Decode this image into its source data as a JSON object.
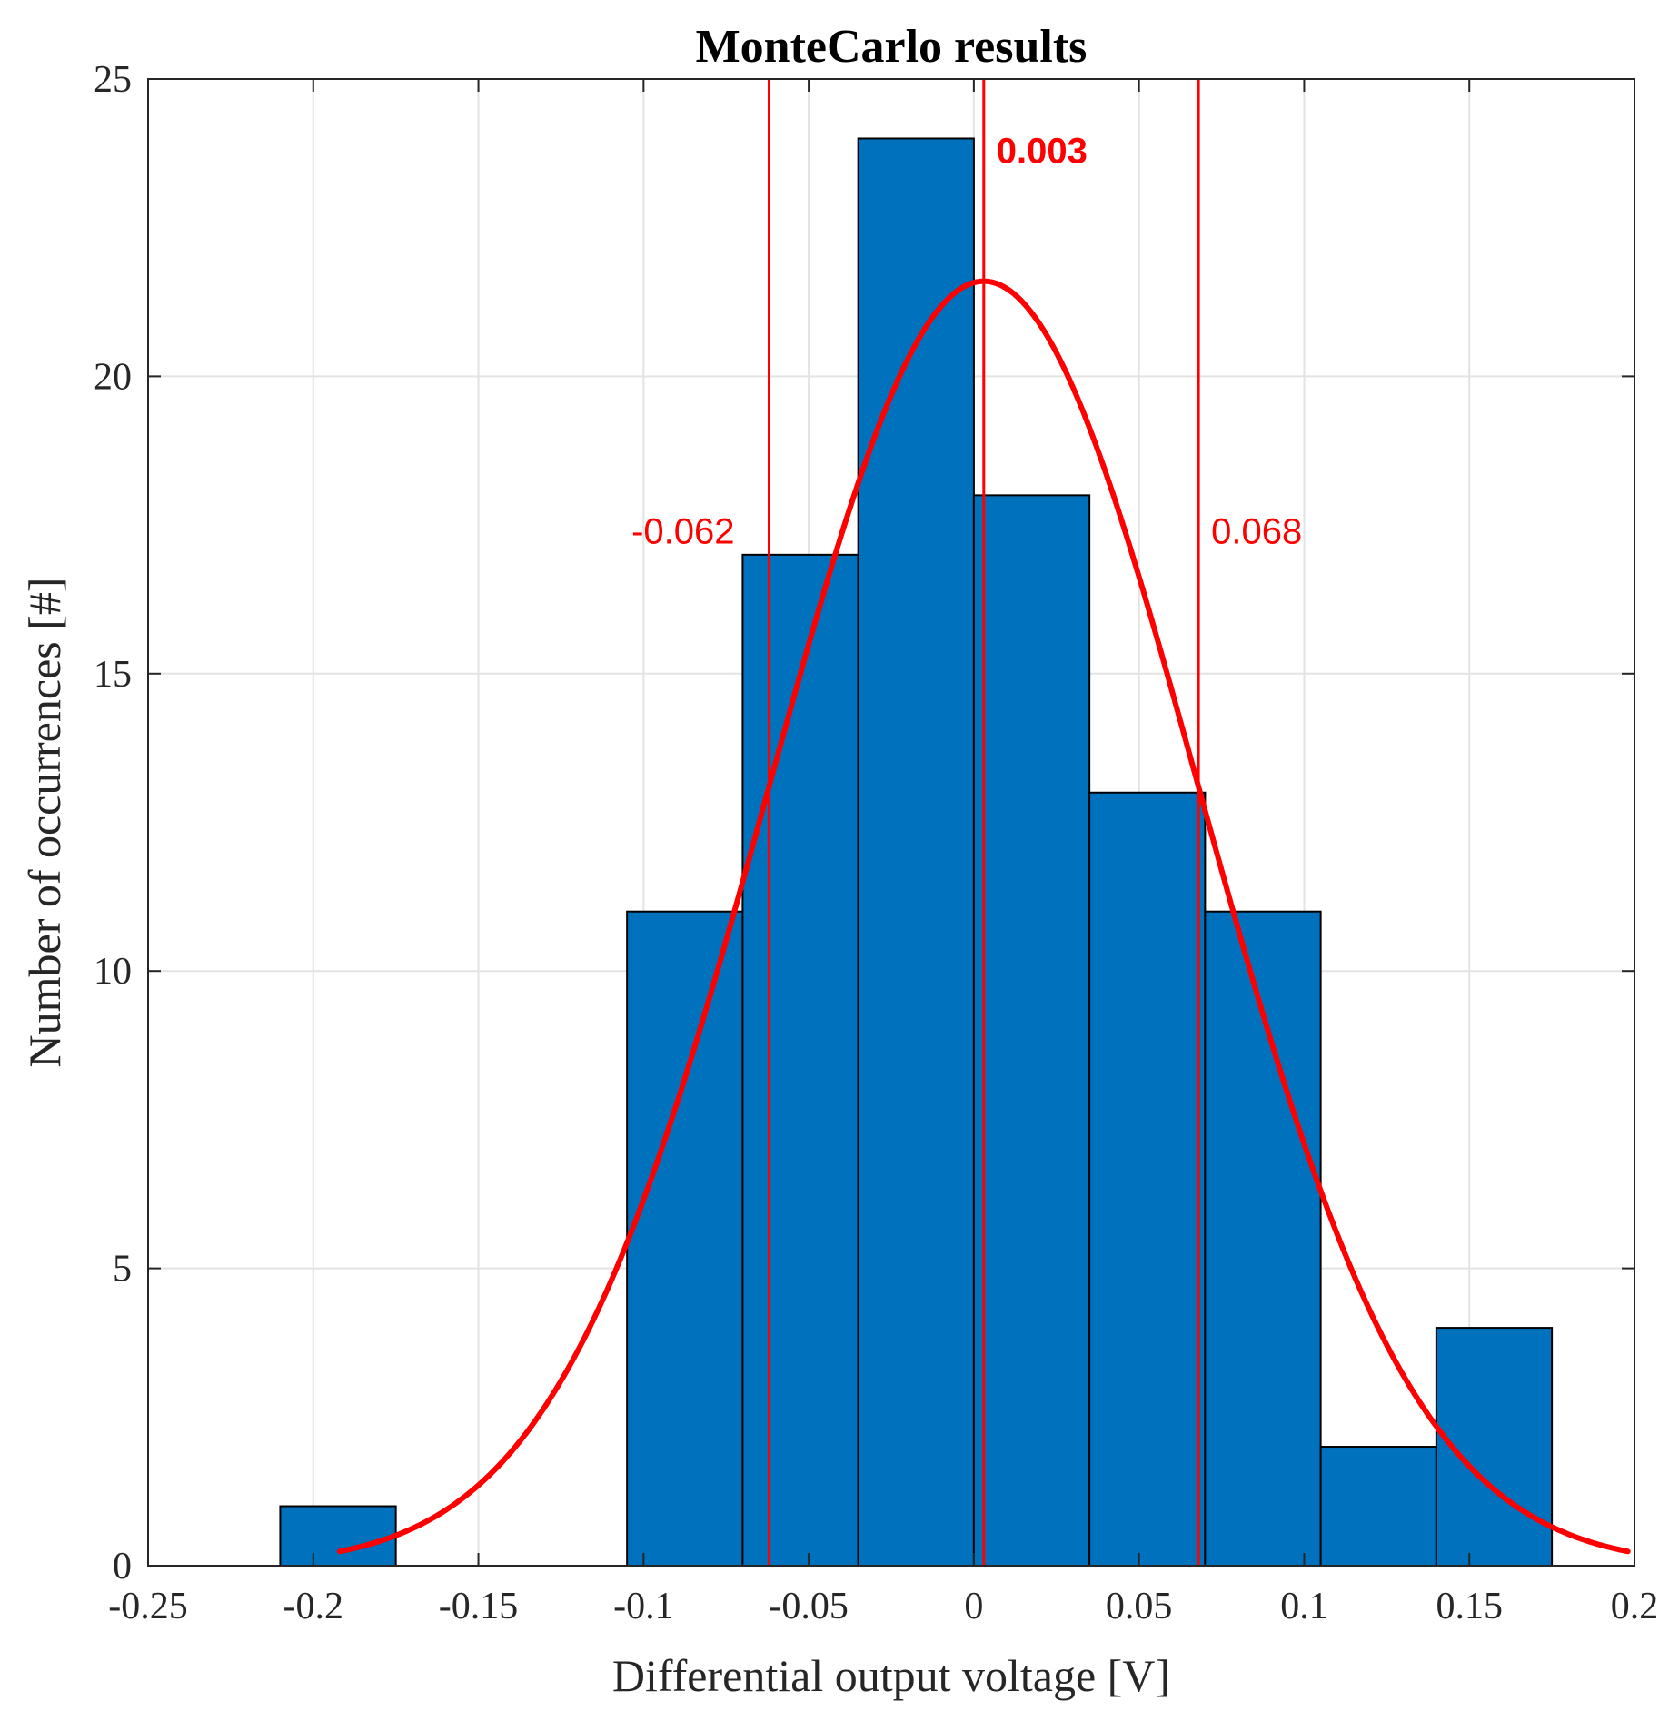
{
  "chart_data": {
    "type": "histogram",
    "title": "MonteCarlo results",
    "xlabel": "Differential output voltage [V]",
    "ylabel": "Number of occurrences [#]",
    "xlim": [
      -0.25,
      0.2
    ],
    "ylim": [
      0,
      25
    ],
    "xticks": [
      -0.25,
      -0.2,
      -0.15,
      -0.1,
      -0.05,
      0,
      0.05,
      0.1,
      0.15,
      0.2
    ],
    "xtick_labels": [
      "-0.25",
      "-0.2",
      "-0.15",
      "-0.1",
      "-0.05",
      "0",
      "0.05",
      "0.1",
      "0.15",
      "0.2"
    ],
    "yticks": [
      0,
      5,
      10,
      15,
      20,
      25
    ],
    "ytick_labels": [
      "0",
      "5",
      "10",
      "15",
      "20",
      "25"
    ],
    "grid": true,
    "bins": [
      {
        "start": -0.21,
        "end": -0.175,
        "count": 1
      },
      {
        "start": -0.105,
        "end": -0.07,
        "count": 11
      },
      {
        "start": -0.07,
        "end": -0.035,
        "count": 17
      },
      {
        "start": -0.035,
        "end": 0.0,
        "count": 24
      },
      {
        "start": 0.0,
        "end": 0.035,
        "count": 18
      },
      {
        "start": 0.035,
        "end": 0.07,
        "count": 13
      },
      {
        "start": 0.07,
        "end": 0.105,
        "count": 11
      },
      {
        "start": 0.105,
        "end": 0.14,
        "count": 2
      },
      {
        "start": 0.14,
        "end": 0.175,
        "count": 4
      }
    ],
    "fit_curve": {
      "type": "normal",
      "mean": 0.003,
      "sigma": 0.065,
      "peak": 21.6,
      "x_range": [
        -0.192,
        0.198
      ]
    },
    "vertical_lines": [
      {
        "x": -0.062,
        "label": "-0.062",
        "bold": false,
        "label_side": "left",
        "label_y": 17.4
      },
      {
        "x": 0.003,
        "label": "0.003",
        "bold": true,
        "label_side": "right",
        "label_y": 23.8
      },
      {
        "x": 0.068,
        "label": "0.068",
        "bold": false,
        "label_side": "right",
        "label_y": 17.4
      }
    ],
    "colors": {
      "bar": "#0072BD",
      "bar_edge": "#000000",
      "fit": "#FF0000",
      "marker_line": "#FF0000",
      "grid": "#E3E3E3",
      "axis": "#262626"
    }
  }
}
